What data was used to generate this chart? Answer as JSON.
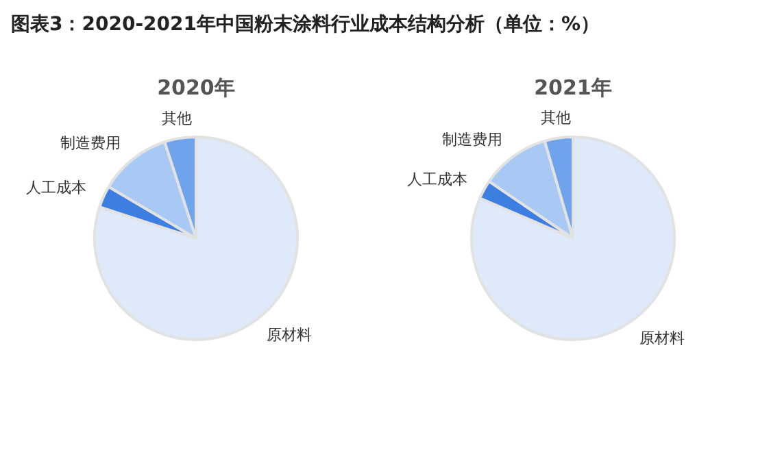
{
  "chart_data": [
    {
      "type": "pie",
      "title": "2020年",
      "categories": [
        "原材料",
        "人工成本",
        "制造费用",
        "其他"
      ],
      "values": [
        80,
        3.5,
        11.5,
        5
      ],
      "colors": [
        "#deeafa",
        "#3d7fe0",
        "#a9c9f5",
        "#6fa3ec"
      ],
      "legend": false,
      "annotations": [
        "图表3：2020-2021年中国粉末涂料行业成本结构分析（单位：%）"
      ]
    },
    {
      "type": "pie",
      "title": "2021年",
      "categories": [
        "原材料",
        "人工成本",
        "制造费用",
        "其他"
      ],
      "values": [
        81.5,
        3,
        11,
        4.5
      ],
      "colors": [
        "#deeafa",
        "#3d7fe0",
        "#a9c9f5",
        "#6fa3ec"
      ],
      "legend": false
    }
  ]
}
